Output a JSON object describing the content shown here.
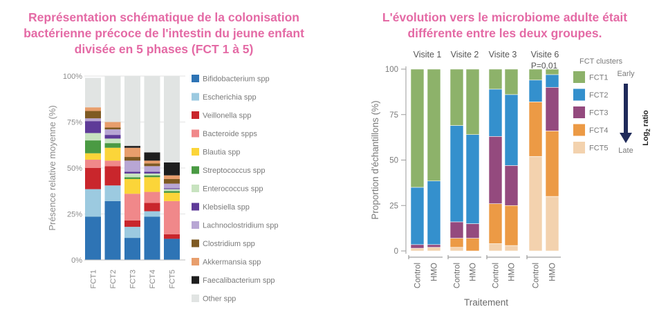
{
  "titles": {
    "left": "Représentation schématique de la colonisation bactérienne précoce de l'intestin du jeune enfant divisée en 5 phases (FCT 1 à 5)",
    "right": "L'évolution vers le microbiome adulte était différente entre les deux groupes."
  },
  "colors": {
    "Bifidobacterium spp": "#2e74b5",
    "Escherichia spp": "#9ccae0",
    "Veillonella spp": "#c9262c",
    "Bacteroide spps": "#f0888a",
    "Blautia spp": "#fbd539",
    "Streptococcus spp": "#4a9a43",
    "Enterococcus spp": "#c8e3c0",
    "Klebsiella spp": "#5e3b98",
    "Lachnoclostridium spp": "#b8a6d4",
    "Clostridium spp": "#7e5a23",
    "Akkermansia spp": "#e89e6c",
    "Faecalibacterium spp": "#1e1e1e",
    "Other spp": "#e1e4e3",
    "FCT1": "#8db26a",
    "FCT2": "#3490cd",
    "FCT3": "#944a7e",
    "FCT4": "#ec9a45",
    "FCT5": "#f3d2ae",
    "arrow": "#1f2a5a"
  },
  "chart_data": [
    {
      "type": "bar",
      "stacked": true,
      "title": "Représentation schématique de la colonisation bactérienne précoce de l'intestin du jeune enfant divisée en 5 phases (FCT 1 à 5)",
      "xlabel": "",
      "ylabel": "Présence relative moyenne (%)",
      "ylim": [
        0,
        100
      ],
      "yticks": [
        "0%",
        "25%",
        "50%",
        "75%",
        "100%"
      ],
      "categories": [
        "FCT1",
        "FCT2",
        "FCT3",
        "FCT4",
        "FCT5"
      ],
      "legend": [
        "Bifidobacterium spp",
        "Escherichia spp",
        "Veillonella spp",
        "Bacteroide spps",
        "Blautia spp",
        "Streptococcus spp",
        "Enterococcus spp",
        "Klebsiella spp",
        "Lachnoclostridium spp",
        "Clostridium spp",
        "Akkermansia spp",
        "Faecalibacterium spp",
        "Other spp"
      ],
      "series": [
        {
          "name": "Bifidobacterium spp",
          "values": [
            23.5,
            32,
            12,
            23.5,
            11.5
          ]
        },
        {
          "name": "Escherichia spp",
          "values": [
            15,
            8.5,
            6,
            3,
            0
          ]
        },
        {
          "name": "Veillonella spp",
          "values": [
            11.5,
            10.5,
            3.5,
            4.5,
            2.5
          ]
        },
        {
          "name": "Bacteroide spps",
          "values": [
            4.5,
            3,
            14.5,
            6,
            18
          ]
        },
        {
          "name": "Blautia spp",
          "values": [
            3.5,
            7,
            8,
            8,
            4.5
          ]
        },
        {
          "name": "Streptococcus spp",
          "values": [
            7,
            2.5,
            1,
            1,
            1
          ]
        },
        {
          "name": "Enterococcus spp",
          "values": [
            4,
            2.5,
            2,
            1,
            1
          ]
        },
        {
          "name": "Klebsiella spp",
          "values": [
            6.5,
            2,
            1,
            1,
            0.5
          ]
        },
        {
          "name": "Lachnoclostridium spp",
          "values": [
            1.5,
            3,
            6,
            3,
            2.5
          ]
        },
        {
          "name": "Clostridium spp",
          "values": [
            4,
            1,
            2,
            1.5,
            2.5
          ]
        },
        {
          "name": "Akkermansia spp",
          "values": [
            2,
            3,
            5,
            1.5,
            2
          ]
        },
        {
          "name": "Faecalibacterium spp",
          "values": [
            0,
            0,
            1,
            4.5,
            7
          ]
        },
        {
          "name": "Other spp",
          "values": [
            16,
            25,
            38,
            41.5,
            47
          ]
        }
      ]
    },
    {
      "type": "bar",
      "stacked": true,
      "title": "L'évolution vers le microbiome adulte était différente entre les deux groupes.",
      "xlabel": "Traitement",
      "ylabel": "Proportion d'échantillons (%)",
      "ylim": [
        0,
        100
      ],
      "yticks": [
        "0",
        "25",
        "50",
        "75",
        "100"
      ],
      "groups": [
        "Visite 1",
        "Visite 2",
        "Visite 3",
        "Visite 6"
      ],
      "annotation": "P=0,01",
      "categories": [
        "Control",
        "HMO",
        "Control",
        "HMO",
        "Control",
        "HMO",
        "Control",
        "HMO"
      ],
      "legend_title": "FCT clusters",
      "legend": [
        "FCT1",
        "FCT2",
        "FCT3",
        "FCT4",
        "FCT5"
      ],
      "arrow_top": "Early",
      "arrow_bottom": "Late",
      "arrow_label_base": "Log",
      "arrow_label_sub": "2",
      "arrow_label_rest": "ratio",
      "series": [
        {
          "name": "FCT5",
          "values": [
            1.5,
            2,
            2,
            0,
            4,
            3,
            52,
            30
          ]
        },
        {
          "name": "FCT4",
          "values": [
            0,
            0,
            5,
            7,
            22,
            22,
            30,
            36
          ]
        },
        {
          "name": "FCT3",
          "values": [
            2,
            1.5,
            9,
            8,
            37,
            22,
            0,
            24
          ]
        },
        {
          "name": "FCT2",
          "values": [
            31.5,
            35,
            53,
            49,
            26,
            39,
            12,
            7
          ]
        },
        {
          "name": "FCT1",
          "values": [
            65,
            61.5,
            31,
            36,
            11,
            14,
            6,
            3
          ]
        }
      ]
    }
  ]
}
